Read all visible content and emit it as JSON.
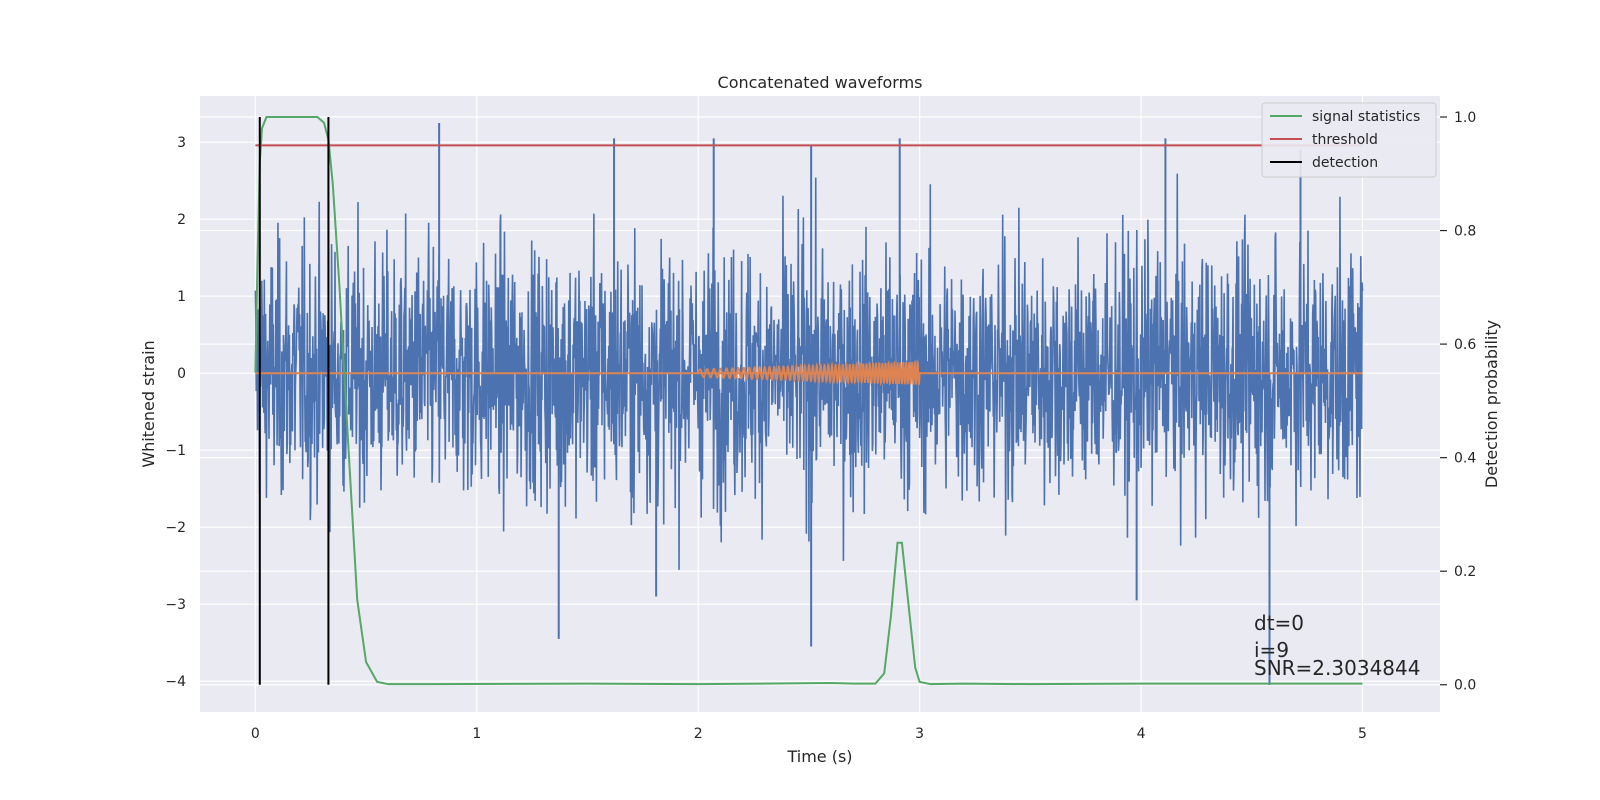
{
  "chart_data": {
    "type": "line",
    "title": "Concatenated waveforms",
    "xlabel": "Time (s)",
    "ylabel": "Whitened strain",
    "ylabel_right": "Detection probability",
    "xlim": [
      -0.25,
      5.35
    ],
    "ylim": [
      -4.4,
      3.6
    ],
    "ylim_right": [
      -0.048,
      1.037
    ],
    "x_ticks": [
      0,
      1,
      2,
      3,
      4,
      5
    ],
    "x_tick_labels": [
      "0",
      "1",
      "2",
      "3",
      "4",
      "5"
    ],
    "y_ticks": [
      -4,
      -3,
      -2,
      -1,
      0,
      1,
      2,
      3
    ],
    "y_tick_labels": [
      "−4",
      "−3",
      "−2",
      "−1",
      "0",
      "1",
      "2",
      "3"
    ],
    "y_right_ticks": [
      0.0,
      0.2,
      0.4,
      0.6,
      0.8,
      1.0
    ],
    "y_right_tick_labels": [
      "0.0",
      "0.2",
      "0.4",
      "0.6",
      "0.8",
      "1.0"
    ],
    "grid": true,
    "legend_position": "top-right",
    "legend": [
      {
        "label": "signal statistics",
        "color": "#55a868"
      },
      {
        "label": "threshold",
        "color": "#c44e52"
      },
      {
        "label": "detection",
        "color": "#000000"
      }
    ],
    "noise_series": {
      "color": "#4c72b0",
      "x_range": [
        0,
        5
      ],
      "typical_amplitude": 1.3,
      "peaks": [
        {
          "x": 0.83,
          "y": 3.25
        },
        {
          "x": 1.62,
          "y": 3.05
        },
        {
          "x": 2.07,
          "y": 3.05
        },
        {
          "x": 2.51,
          "y": 2.95
        },
        {
          "x": 2.91,
          "y": 3.05
        },
        {
          "x": 4.11,
          "y": 3.05
        },
        {
          "x": 4.72,
          "y": 2.9
        },
        {
          "x": 1.37,
          "y": -3.45
        },
        {
          "x": 2.51,
          "y": -3.55
        },
        {
          "x": 4.58,
          "y": -4.05
        },
        {
          "x": 3.98,
          "y": -2.95
        },
        {
          "x": 1.81,
          "y": -2.9
        }
      ]
    },
    "injected_signal": {
      "color": "#dd8452",
      "x_range": [
        2.0,
        3.0
      ],
      "amplitude_start": 0.05,
      "amplitude_end": 0.15,
      "baseline_x_range": [
        0,
        5
      ]
    },
    "signal_statistics": {
      "color": "#55a868",
      "x": [
        0,
        0.01,
        0.02,
        0.03,
        0.05,
        0.1,
        0.2,
        0.28,
        0.31,
        0.33,
        0.35,
        0.38,
        0.42,
        0.46,
        0.5,
        0.55,
        0.6,
        0.8,
        1.5,
        2.0,
        2.6,
        2.7,
        2.8,
        2.84,
        2.87,
        2.9,
        2.92,
        2.95,
        2.98,
        3.0,
        3.05,
        3.2,
        3.5,
        4.0,
        4.5,
        5.0
      ],
      "values": [
        0.55,
        0.75,
        0.92,
        0.98,
        1.0,
        1.0,
        1.0,
        1.0,
        0.99,
        0.96,
        0.88,
        0.7,
        0.42,
        0.15,
        0.04,
        0.005,
        0.001,
        0.001,
        0.002,
        0.001,
        0.003,
        0.002,
        0.002,
        0.02,
        0.12,
        0.25,
        0.25,
        0.14,
        0.03,
        0.005,
        0.001,
        0.002,
        0.001,
        0.002,
        0.002,
        0.002
      ]
    },
    "threshold": {
      "color": "#c44e52",
      "value": 0.95,
      "x_range": [
        0,
        5
      ]
    },
    "detections": {
      "color": "#000000",
      "x": [
        0.02,
        0.33
      ],
      "y_range": [
        0.0,
        1.0
      ]
    },
    "annotations": [
      "dt=0",
      "i=9",
      "SNR=2.3034844"
    ]
  }
}
